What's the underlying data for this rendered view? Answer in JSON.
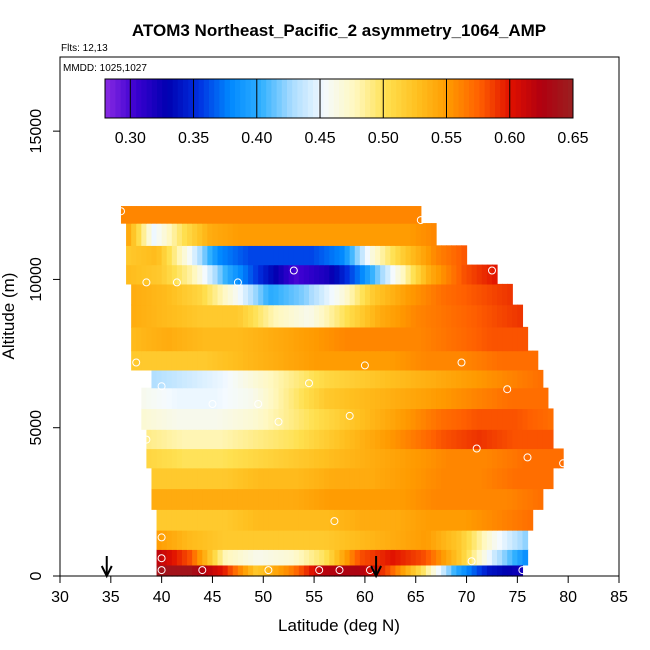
{
  "chart_data": {
    "type": "heatmap",
    "title": "ATOM3 Northeast_Pacific_2 asymmetry_1064_AMP",
    "flights_note": "Flts: 12,13",
    "dates_note": "MMDD: 1025,1027",
    "xlabel": "Latitude (deg N)",
    "ylabel": "Altitude (m)",
    "xlim": [
      30,
      85
    ],
    "ylim": [
      0,
      17500
    ],
    "x_ticks": [
      "30",
      "35",
      "40",
      "45",
      "50",
      "55",
      "60",
      "65",
      "70",
      "75",
      "80",
      "85"
    ],
    "y_ticks": [
      "0",
      "5000",
      "10000",
      "15000"
    ],
    "colorbar": {
      "min": 0.28,
      "max": 0.65,
      "tick_labels": [
        "0.30",
        "0.35",
        "0.40",
        "0.45",
        "0.50",
        "0.55",
        "0.60",
        "0.65"
      ],
      "colors": [
        "#8a2be2",
        "#3a00d0",
        "#0000b0",
        "#0030e0",
        "#0088ff",
        "#30b0ff",
        "#aadcff",
        "#f4faff",
        "#fff8c0",
        "#ffe050",
        "#ffc020",
        "#ff9a00",
        "#ff6000",
        "#e01000",
        "#b00010",
        "#9a2020"
      ]
    },
    "bands": [
      {
        "alt": 12300,
        "lat_min": 36.0,
        "lat_max": 65.5,
        "values": [
          0.56,
          0.56,
          0.56,
          0.56,
          0.56,
          0.56,
          0.56,
          0.56,
          0.56,
          0.56,
          0.56,
          0.56
        ]
      },
      {
        "alt": 11500,
        "lat_min": 36.5,
        "lat_max": 67.0,
        "values": [
          0.55,
          0.45,
          0.5,
          0.54,
          0.55,
          0.55,
          0.55,
          0.55,
          0.55,
          0.55,
          0.55,
          0.56
        ]
      },
      {
        "alt": 10800,
        "lat_min": 36.5,
        "lat_max": 70.0,
        "values": [
          0.52,
          0.53,
          0.46,
          0.38,
          0.36,
          0.36,
          0.36,
          0.38,
          0.47,
          0.52,
          0.56,
          0.58
        ]
      },
      {
        "alt": 10200,
        "lat_min": 36.5,
        "lat_max": 73.0,
        "values": [
          0.53,
          0.52,
          0.48,
          0.4,
          0.35,
          0.3,
          0.32,
          0.38,
          0.46,
          0.54,
          0.58,
          0.6
        ]
      },
      {
        "alt": 9500,
        "lat_min": 37.0,
        "lat_max": 74.5,
        "values": [
          0.54,
          0.53,
          0.51,
          0.46,
          0.4,
          0.42,
          0.46,
          0.52,
          0.55,
          0.57,
          0.58,
          0.59
        ]
      },
      {
        "alt": 8800,
        "lat_min": 37.0,
        "lat_max": 75.5,
        "values": [
          0.54,
          0.53,
          0.52,
          0.52,
          0.48,
          0.46,
          0.5,
          0.54,
          0.56,
          0.57,
          0.58,
          0.59
        ]
      },
      {
        "alt": 8000,
        "lat_min": 37.0,
        "lat_max": 76.0,
        "values": [
          0.53,
          0.54,
          0.53,
          0.53,
          0.54,
          0.55,
          0.56,
          0.56,
          0.56,
          0.57,
          0.58,
          0.58
        ]
      },
      {
        "alt": 7200,
        "lat_min": 37.0,
        "lat_max": 77.0,
        "values": [
          0.52,
          0.52,
          0.52,
          0.53,
          0.54,
          0.55,
          0.55,
          0.55,
          0.56,
          0.56,
          0.57,
          0.57
        ]
      },
      {
        "alt": 6700,
        "lat_min": 39.0,
        "lat_max": 77.5,
        "values": [
          0.43,
          0.44,
          0.45,
          0.47,
          0.49,
          0.51,
          0.52,
          0.53,
          0.54,
          0.55,
          0.56,
          0.57
        ]
      },
      {
        "alt": 6000,
        "lat_min": 38.0,
        "lat_max": 78.0,
        "values": [
          0.46,
          0.45,
          0.45,
          0.46,
          0.49,
          0.52,
          0.53,
          0.54,
          0.55,
          0.56,
          0.57,
          0.57
        ]
      },
      {
        "alt": 5300,
        "lat_min": 38.0,
        "lat_max": 78.5,
        "values": [
          0.47,
          0.46,
          0.46,
          0.47,
          0.49,
          0.51,
          0.53,
          0.55,
          0.57,
          0.58,
          0.58,
          0.57
        ]
      },
      {
        "alt": 4600,
        "lat_min": 38.5,
        "lat_max": 78.5,
        "values": [
          0.49,
          0.48,
          0.48,
          0.49,
          0.5,
          0.52,
          0.54,
          0.56,
          0.58,
          0.59,
          0.58,
          0.58
        ]
      },
      {
        "alt": 4000,
        "lat_min": 38.5,
        "lat_max": 79.5,
        "values": [
          0.51,
          0.5,
          0.5,
          0.51,
          0.52,
          0.53,
          0.54,
          0.55,
          0.56,
          0.56,
          0.57,
          0.57
        ]
      },
      {
        "alt": 3300,
        "lat_min": 39.0,
        "lat_max": 78.5,
        "values": [
          0.52,
          0.52,
          0.52,
          0.53,
          0.53,
          0.54,
          0.54,
          0.55,
          0.56,
          0.56,
          0.57,
          0.57
        ]
      },
      {
        "alt": 2600,
        "lat_min": 39.0,
        "lat_max": 77.5,
        "values": [
          0.54,
          0.54,
          0.54,
          0.54,
          0.54,
          0.55,
          0.55,
          0.55,
          0.56,
          0.56,
          0.56,
          0.57
        ]
      },
      {
        "alt": 1900,
        "lat_min": 39.5,
        "lat_max": 76.5,
        "values": [
          0.52,
          0.52,
          0.52,
          0.53,
          0.53,
          0.53,
          0.54,
          0.54,
          0.55,
          0.55,
          0.56,
          0.57
        ]
      },
      {
        "alt": 1200,
        "lat_min": 39.5,
        "lat_max": 76.0,
        "values": [
          0.55,
          0.53,
          0.52,
          0.52,
          0.52,
          0.52,
          0.53,
          0.54,
          0.55,
          0.52,
          0.46,
          0.42
        ]
      },
      {
        "alt": 600,
        "lat_min": 39.5,
        "lat_max": 76.0,
        "values": [
          0.62,
          0.58,
          0.48,
          0.46,
          0.47,
          0.5,
          0.58,
          0.6,
          0.58,
          0.52,
          0.44,
          0.38
        ]
      },
      {
        "alt": 150,
        "lat_min": 39.5,
        "lat_max": 75.5,
        "values": [
          0.64,
          0.64,
          0.6,
          0.52,
          0.56,
          0.62,
          0.63,
          0.58,
          0.5,
          0.4,
          0.34,
          0.32
        ]
      }
    ],
    "sample_points": [
      {
        "x": 36.0,
        "y": 12300
      },
      {
        "x": 65.5,
        "y": 12000
      },
      {
        "x": 38.5,
        "y": 9900
      },
      {
        "x": 41.5,
        "y": 9900
      },
      {
        "x": 47.5,
        "y": 9900
      },
      {
        "x": 53.0,
        "y": 10300
      },
      {
        "x": 72.5,
        "y": 10300
      },
      {
        "x": 37.5,
        "y": 7200
      },
      {
        "x": 60.0,
        "y": 7100
      },
      {
        "x": 69.5,
        "y": 7200
      },
      {
        "x": 79.0,
        "y": 7400
      },
      {
        "x": 54.5,
        "y": 6500
      },
      {
        "x": 74.0,
        "y": 6300
      },
      {
        "x": 40.0,
        "y": 6400
      },
      {
        "x": 45.0,
        "y": 5800
      },
      {
        "x": 49.5,
        "y": 5800
      },
      {
        "x": 51.5,
        "y": 5200
      },
      {
        "x": 58.5,
        "y": 5400
      },
      {
        "x": 38.5,
        "y": 4600
      },
      {
        "x": 71.0,
        "y": 4300
      },
      {
        "x": 76.0,
        "y": 4000
      },
      {
        "x": 79.5,
        "y": 3800
      },
      {
        "x": 57.0,
        "y": 1850
      },
      {
        "x": 40.0,
        "y": 1300
      },
      {
        "x": 40.0,
        "y": 600
      },
      {
        "x": 40.0,
        "y": 200
      },
      {
        "x": 44.0,
        "y": 200
      },
      {
        "x": 50.5,
        "y": 200
      },
      {
        "x": 55.5,
        "y": 200
      },
      {
        "x": 57.5,
        "y": 200
      },
      {
        "x": 60.5,
        "y": 200
      },
      {
        "x": 70.5,
        "y": 500
      },
      {
        "x": 75.5,
        "y": 200
      }
    ],
    "arrows": [
      {
        "x": 34.6
      },
      {
        "x": 61.1
      }
    ]
  }
}
